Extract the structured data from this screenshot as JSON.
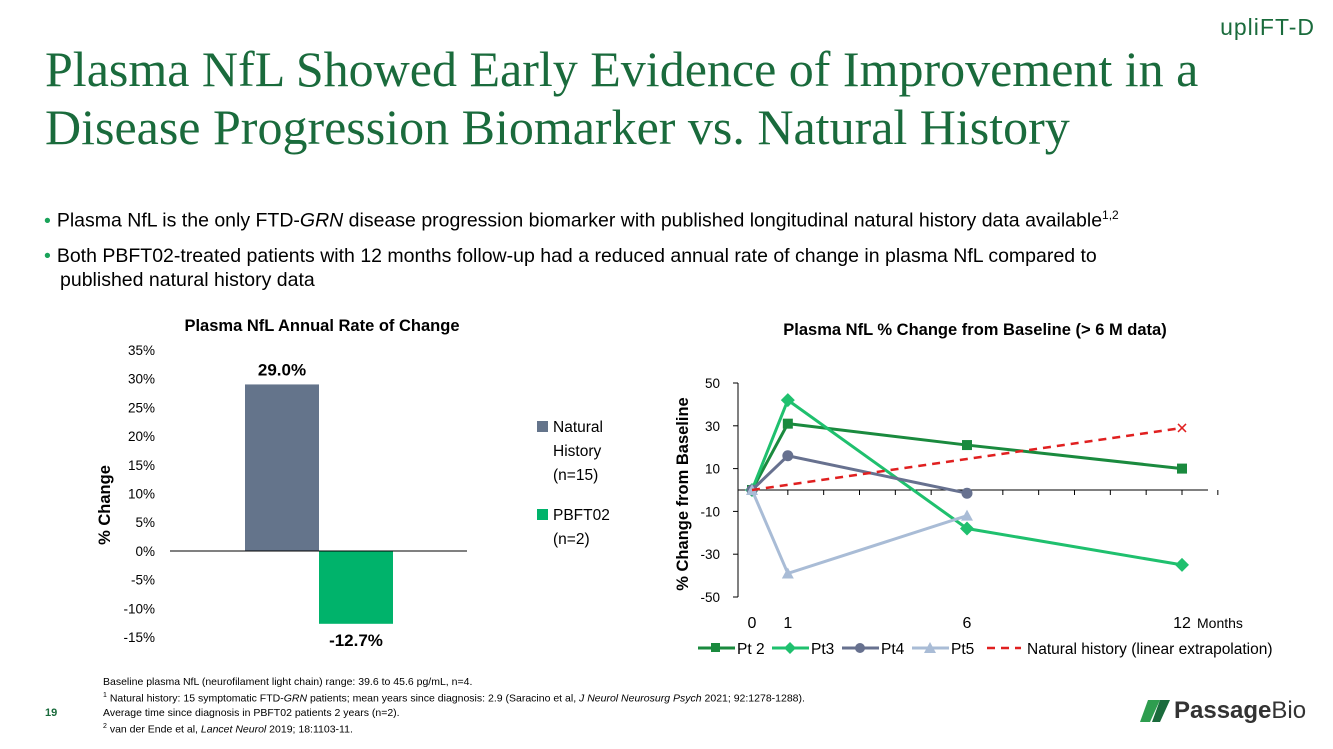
{
  "slide": {
    "title": "Plasma NfL Showed Early Evidence of Improvement in a Disease Progression Biomarker vs. Natural History",
    "logo_text": "upliFT-D",
    "bullet1": {
      "pre": "Plasma NfL is the only FTD-",
      "italic": "GRN",
      "post": " disease progression biomarker with published longitudinal natural history data available",
      "sup": "1,2"
    },
    "bullet2": {
      "line1": "Both PBFT02-treated patients with 12 months follow-up had a reduced annual rate of change in plasma NfL compared to",
      "line2": "published natural history data"
    },
    "footnotes": {
      "line1": "Baseline plasma NfL (neurofilament light chain) range: 39.6 to 45.6 pg/mL, n=4.",
      "line2_sup": "1",
      "line2_pre": " Natural history: 15 symptomatic FTD-",
      "line2_italic1": "GRN",
      "line2_mid": " patients; mean years since diagnosis: 2.9 (Saracino et al, ",
      "line2_italic2": "J Neurol Neurosurg Psych",
      "line2_post": " 2021; 92:1278-1288).",
      "line3": "Average time since diagnosis in PBFT02 patients 2 years (n=2).",
      "line4_sup": "2",
      "line4_pre": " van der Ende et al, ",
      "line4_italic": "Lancet Neurol",
      "line4_post": " 2019; 18:1103-11."
    },
    "page_number": "19",
    "company_logo": {
      "word1": "Passage",
      "word2": "Bio"
    }
  },
  "colors": {
    "title_green": "#1a6b3c",
    "natural_history": "#64748b",
    "pbft02": "#00b36b",
    "pt2": "#1a8a3e",
    "pt3": "#1fc06e",
    "pt4": "#67718f",
    "pt5": "#a9bcd6",
    "nat_hist_line": "#e02020"
  },
  "chart_data": [
    {
      "type": "bar",
      "title": "Plasma NfL Annual Rate of Change",
      "ylabel": "% Change",
      "xlabel": "",
      "ylim": [
        -15,
        35
      ],
      "yticks": [
        "35%",
        "30%",
        "25%",
        "20%",
        "15%",
        "10%",
        "5%",
        "0%",
        "-5%",
        "-10%",
        "-15%"
      ],
      "ytick_values": [
        35,
        30,
        25,
        20,
        15,
        10,
        5,
        0,
        -5,
        -10,
        -15
      ],
      "series": [
        {
          "name": "Natural History (n=15)",
          "legend_lines": [
            "Natural",
            "History",
            "(n=15)"
          ],
          "value": 29.0,
          "label": "29.0%"
        },
        {
          "name": "PBFT02 (n=2)",
          "legend_lines": [
            "PBFT02",
            "(n=2)"
          ],
          "value": -12.7,
          "label": "-12.7%"
        }
      ],
      "legend": "right",
      "grid": false
    },
    {
      "type": "line",
      "title": "Plasma NfL % Change from Baseline (> 6 M data)",
      "ylabel": "% Change from Baseline",
      "xlabel": "Months",
      "xlim": [
        0,
        12
      ],
      "ylim": [
        -50,
        50
      ],
      "yticks": [
        50,
        30,
        10,
        -10,
        -30,
        -50
      ],
      "xtick_labels": [
        "0",
        "1",
        "6",
        "12"
      ],
      "xtick_values": [
        0,
        1,
        6,
        12
      ],
      "legend": "bottom",
      "grid": false,
      "series": [
        {
          "name": "Pt 2",
          "x": [
            0,
            1,
            6,
            12
          ],
          "y": [
            0,
            31,
            21,
            10
          ]
        },
        {
          "name": "Pt3",
          "x": [
            0,
            1,
            6,
            12
          ],
          "y": [
            0,
            42,
            -18,
            -35
          ]
        },
        {
          "name": "Pt4",
          "x": [
            0,
            1,
            6
          ],
          "y": [
            0,
            16,
            -1.5
          ]
        },
        {
          "name": "Pt5",
          "x": [
            0,
            1,
            6
          ],
          "y": [
            0,
            -39,
            -12
          ]
        },
        {
          "name": "Natural history (linear extrapolation)",
          "x": [
            0,
            12
          ],
          "y": [
            0,
            29
          ]
        }
      ]
    }
  ]
}
